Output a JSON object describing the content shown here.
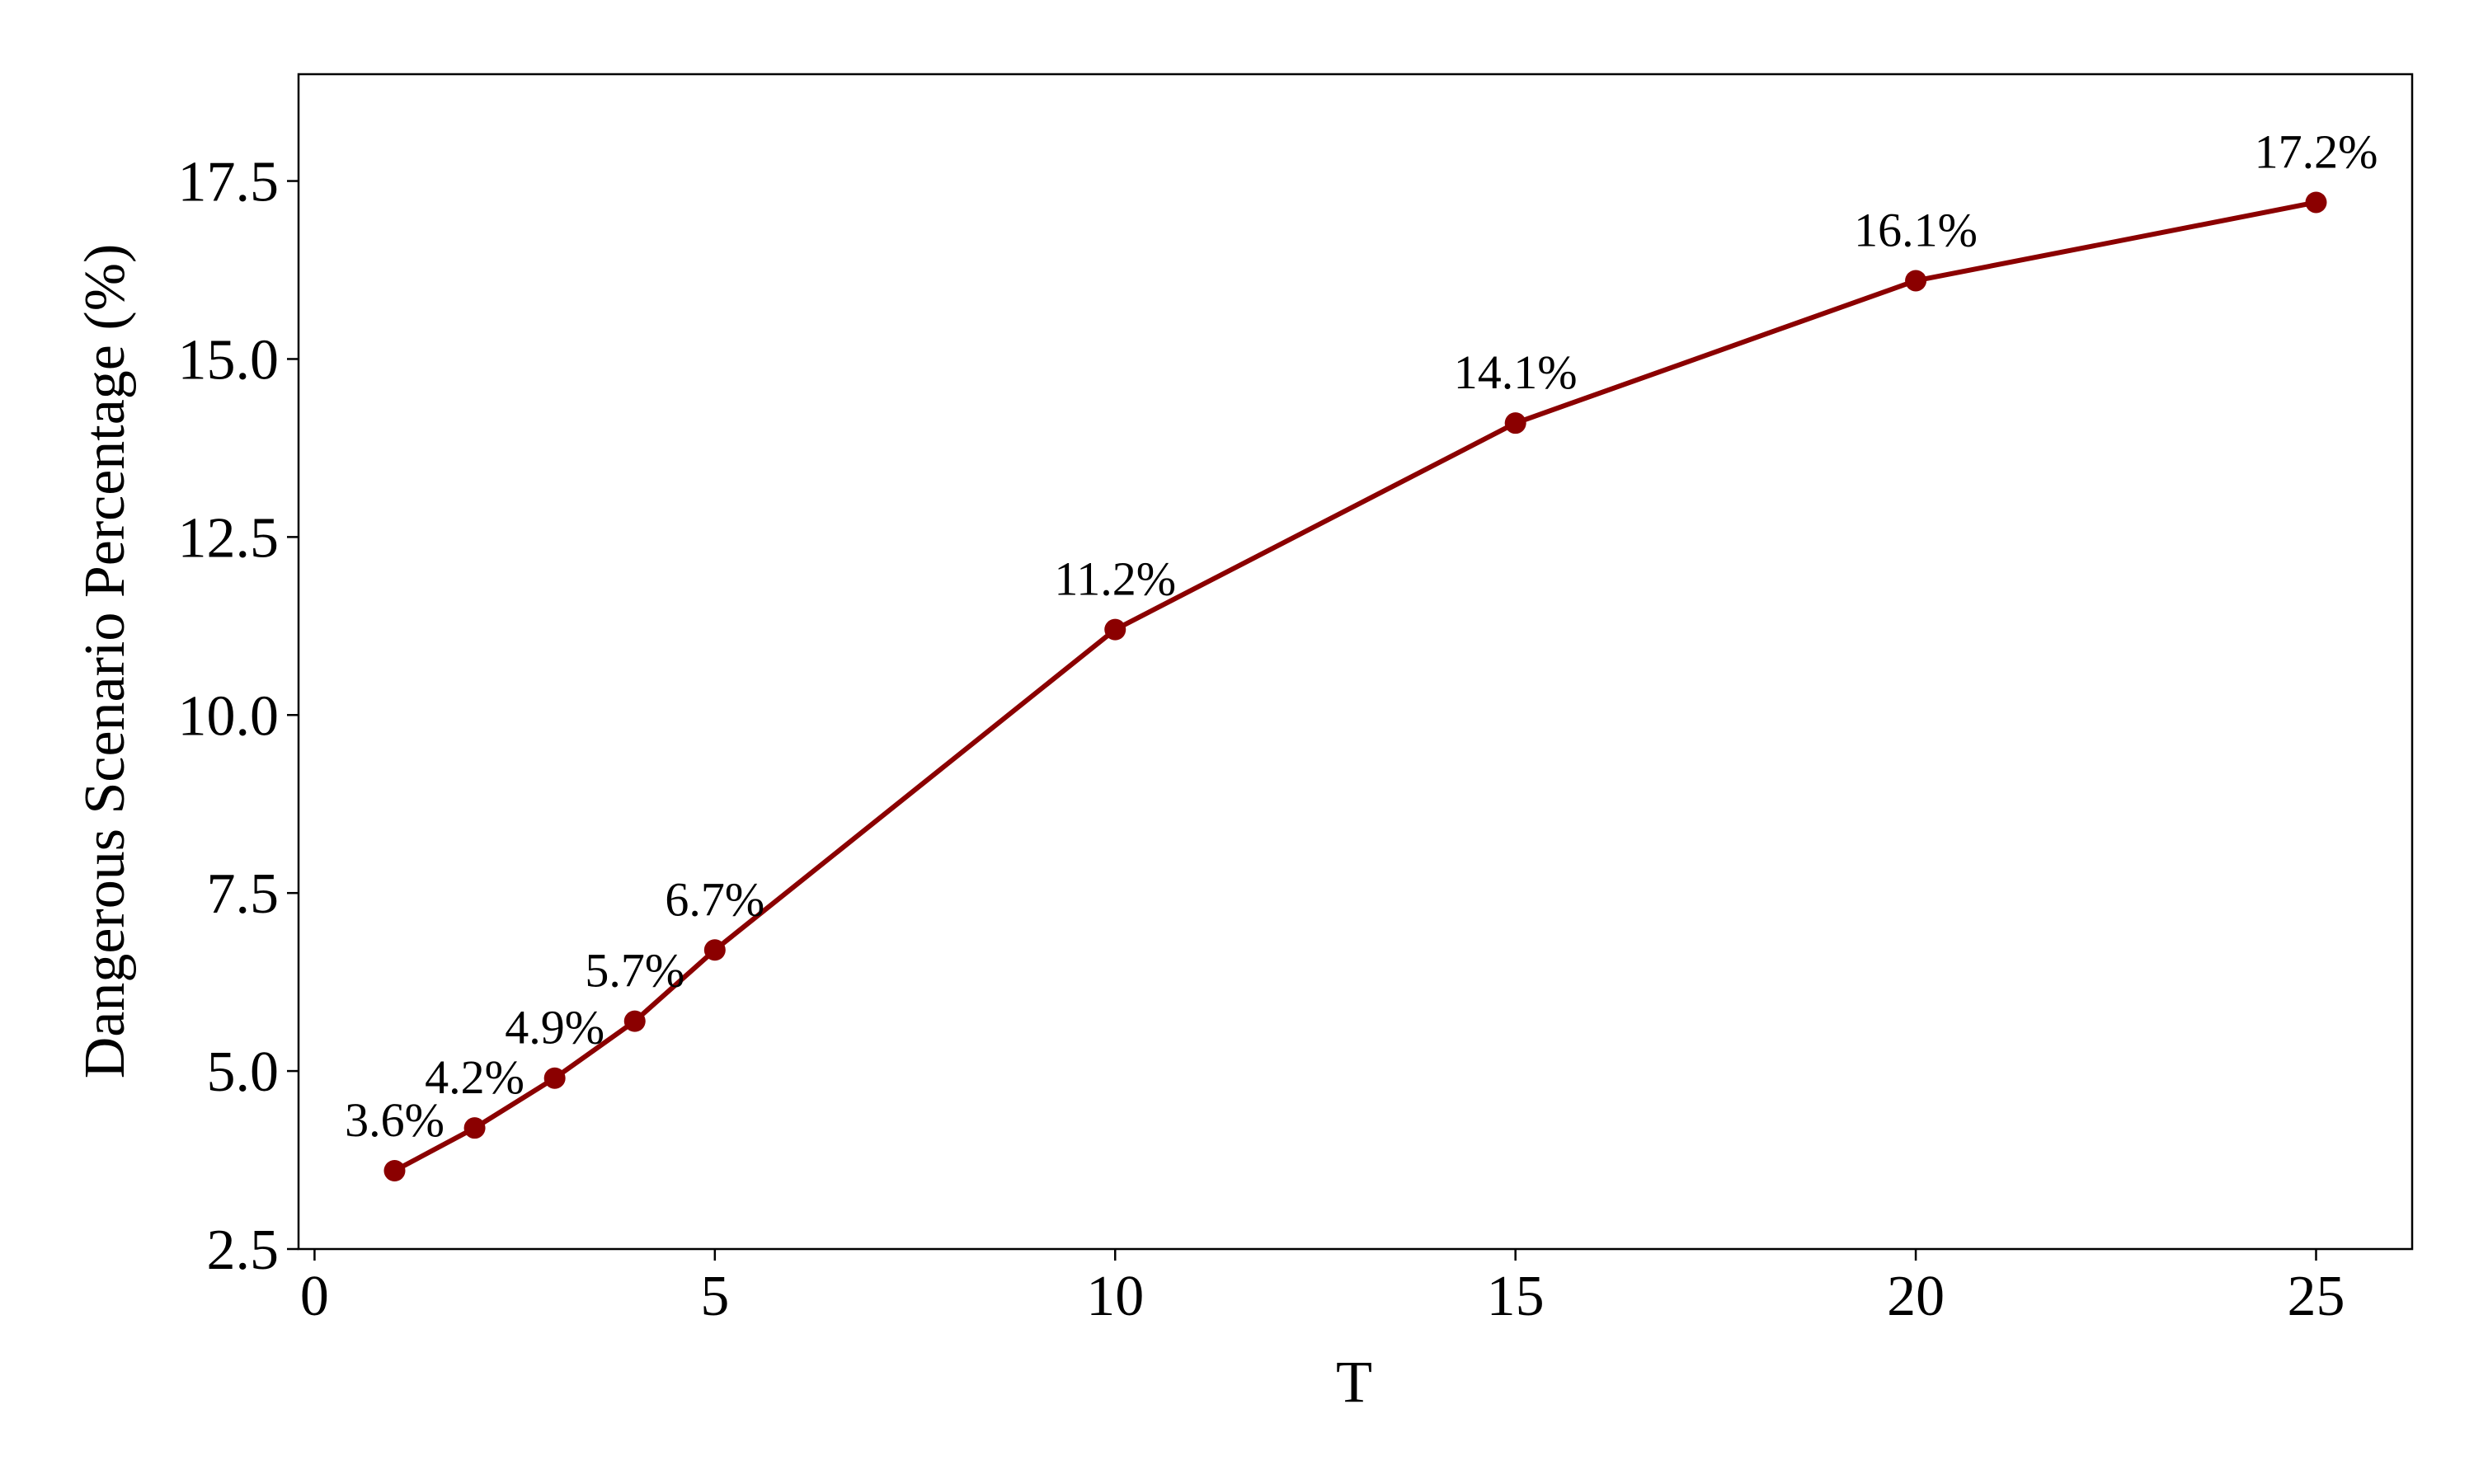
{
  "chart_data": {
    "type": "line",
    "x_label": "T",
    "y_label": "Dangerous Scenario Percentage (%)",
    "x": [
      1,
      2,
      3,
      4,
      5,
      10,
      15,
      20,
      25
    ],
    "values": [
      3.6,
      4.2,
      4.9,
      5.7,
      6.7,
      11.2,
      14.1,
      16.1,
      17.2
    ],
    "value_labels": [
      "3.6%",
      "4.2%",
      "4.9%",
      "5.7%",
      "6.7%",
      "11.2%",
      "14.1%",
      "16.1%",
      "17.2%"
    ],
    "color": "#8b0000",
    "xlim": [
      -0.2,
      26.2
    ],
    "ylim": [
      2.5,
      19.0
    ],
    "xticks": [
      0,
      5,
      10,
      15,
      20,
      25
    ],
    "yticks": [
      2.5,
      {
        "value": 5,
        "label": "5.0"
      },
      7.5,
      {
        "value": 10,
        "label": "10.0"
      },
      12.5,
      {
        "value": 15,
        "label": "15.0"
      },
      17.5
    ],
    "grid": false
  }
}
